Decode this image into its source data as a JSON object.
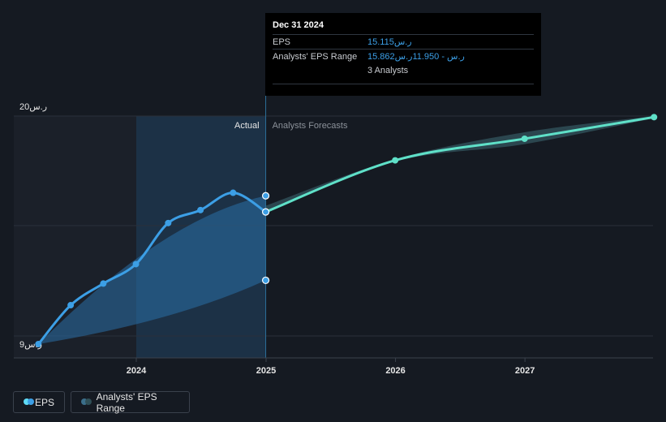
{
  "tooltip": {
    "date": "Dec 31 2024",
    "eps_label": "EPS",
    "eps_value": "15.115ر.س",
    "range_label": "Analysts' EPS Range",
    "range_value": "15.862ر.س - 11.950ر.س",
    "analysts": "3 Analysts"
  },
  "labels": {
    "actual": "Actual",
    "forecast": "Analysts Forecasts"
  },
  "legend": {
    "eps": "EPS",
    "range": "Analysts' EPS Range"
  },
  "colors": {
    "eps_line": "#3c9fe6",
    "forecast_line": "#5fe0c8",
    "range_fill": "#2f4f57",
    "background": "#151a22"
  },
  "chart_data": {
    "type": "line",
    "y_tick_labels": [
      "20ر.س",
      "9ر.س"
    ],
    "y_ticks": [
      20,
      9
    ],
    "ylim": [
      9,
      20
    ],
    "x_tick_labels": [
      "2024",
      "2025",
      "2026",
      "2027"
    ],
    "x_ticks": [
      "2024-01-01",
      "2025-01-01",
      "2026-01-01",
      "2027-01-01"
    ],
    "xlim": [
      "2023-03-31",
      "2027-12-31"
    ],
    "grid": true,
    "legend_position": "bottom-left",
    "series": [
      {
        "name": "EPS",
        "x": [
          "2023-03-31",
          "2023-06-30",
          "2023-09-30",
          "2023-12-31",
          "2024-03-31",
          "2024-06-30",
          "2024-09-30",
          "2024-12-31"
        ],
        "y": [
          9.0,
          10.8,
          11.8,
          12.7,
          14.6,
          15.2,
          16.0,
          15.115
        ]
      },
      {
        "name": "Analysts Forecasts",
        "x": [
          "2024-12-31",
          "2025-12-31",
          "2026-12-31",
          "2027-12-31"
        ],
        "y": [
          15.115,
          17.5,
          18.5,
          19.5
        ]
      },
      {
        "name": "Analysts' EPS Range",
        "type": "range",
        "x": [
          "2023-03-31",
          "2024-12-31"
        ],
        "high": [
          9.0,
          15.862
        ],
        "low": [
          9.0,
          11.95
        ]
      },
      {
        "name": "Analysts' EPS Range",
        "type": "range",
        "x": [
          "2024-12-31",
          "2025-12-31",
          "2026-12-31",
          "2027-12-31"
        ],
        "high": [
          15.4,
          17.55,
          18.8,
          19.55
        ],
        "low": [
          15.115,
          17.45,
          18.25,
          19.45
        ]
      }
    ]
  }
}
